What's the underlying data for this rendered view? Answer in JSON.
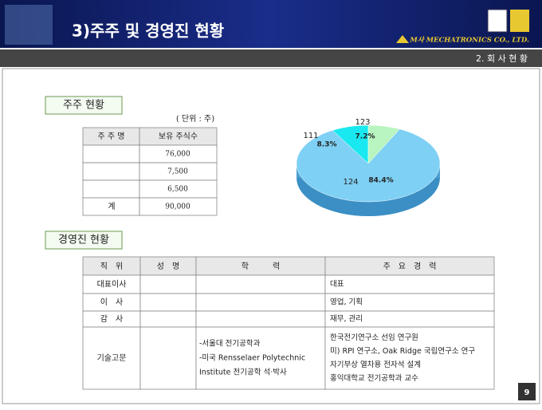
{
  "header": {
    "title": "3)주주 및 경영진 현황",
    "company": "M사 MECHATRONICS CO., LTD.",
    "section": "2. 회 사 현 황"
  },
  "shareholders": {
    "heading": "주주 현황",
    "unit": "( 단위 : 주)",
    "columns": [
      "주 주 명",
      "보유 주식수"
    ],
    "rows": [
      {
        "shares": "76,000"
      },
      {
        "shares": "7,500"
      },
      {
        "shares": "6,500"
      },
      {
        "holder": "계",
        "shares": "90,000"
      }
    ]
  },
  "pie": {
    "type": "pie",
    "slices": [
      {
        "label": "124",
        "value": 84.4,
        "value_label": "84.4%",
        "color": "#7fd0f5"
      },
      {
        "label": "111",
        "value": 8.3,
        "value_label": "8.3%",
        "color": "#19e8f0"
      },
      {
        "label": "123",
        "value": 7.2,
        "value_label": "7.2%",
        "color": "#b8f5c0"
      }
    ]
  },
  "management": {
    "heading": "경영진 현황",
    "columns": [
      "직　위",
      "성　명",
      "학　　　력",
      "주　요　경　력"
    ],
    "rows": [
      {
        "position": "대표이사",
        "career": [
          "대표"
        ]
      },
      {
        "position": "이　사",
        "career": [
          "영업, 기획"
        ]
      },
      {
        "position": "감　사",
        "career": [
          "재무, 관리"
        ]
      },
      {
        "position": "기술고문",
        "education": [
          "-서울대 전기공학과",
          "-미국 Rensselaer Polytechnic",
          "Institute 전기공학 석·박사"
        ],
        "career": [
          "한국전기연구소 선임 연구원",
          "미) RPI 연구소, Oak Ridge 국립연구소 연구",
          "자기부상 열차용 전자석 설계",
          "홍익대학교 전기공학과 교수"
        ]
      }
    ]
  },
  "page": "9"
}
